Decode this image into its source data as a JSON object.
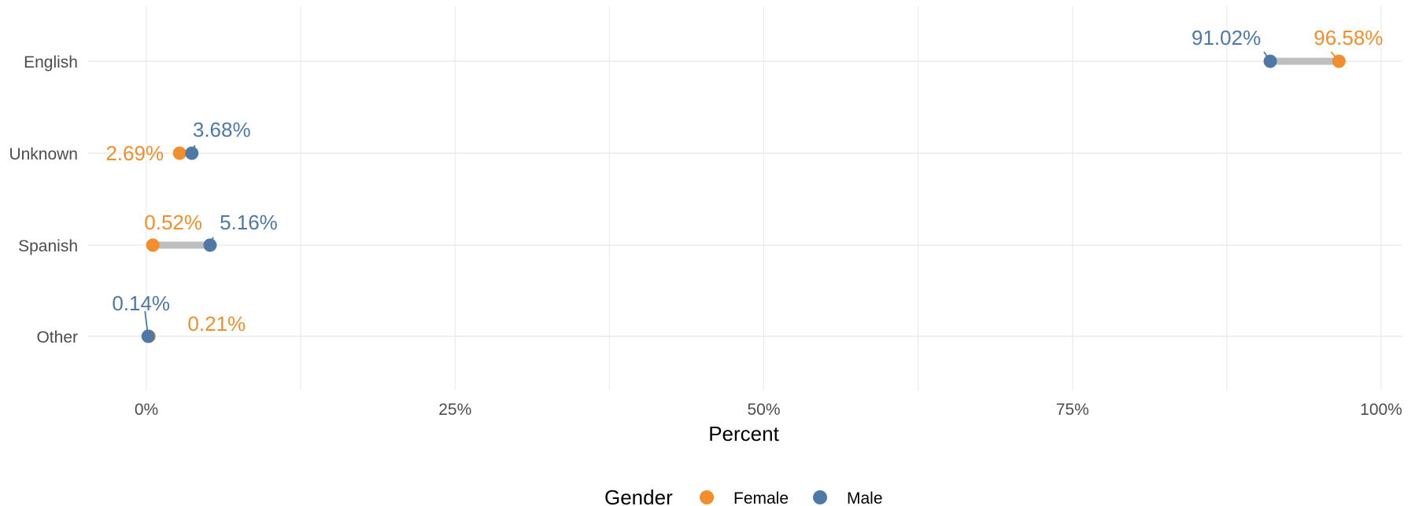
{
  "chart_data": {
    "type": "dumbbell",
    "xlabel": "Percent",
    "xlim": [
      0,
      100
    ],
    "x_ticks": [
      0,
      25,
      50,
      75,
      100
    ],
    "x_tick_labels": [
      "0%",
      "25%",
      "50%",
      "75%",
      "100%"
    ],
    "categories": [
      "English",
      "Unknown",
      "Spanish",
      "Other"
    ],
    "grid": true,
    "legend": {
      "title": "Gender",
      "position": "bottom"
    },
    "series": [
      {
        "name": "Female",
        "color": "#f28e2b",
        "values": [
          96.58,
          2.69,
          0.52,
          0.21
        ],
        "labels": [
          "96.58%",
          "2.69%",
          "0.52%",
          "0.21%"
        ]
      },
      {
        "name": "Male",
        "color": "#4e79a7",
        "values": [
          91.02,
          3.68,
          5.16,
          0.14
        ],
        "labels": [
          "91.02%",
          "3.68%",
          "5.16%",
          "0.14%"
        ]
      }
    ],
    "connector_color": "#bfbfbf"
  }
}
